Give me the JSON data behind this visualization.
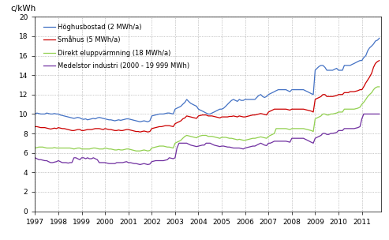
{
  "ylabel": "c/kWh",
  "xlim": [
    1997,
    2011.83
  ],
  "ylim": [
    0,
    20
  ],
  "yticks": [
    0,
    2,
    4,
    6,
    8,
    10,
    12,
    14,
    16,
    18,
    20
  ],
  "xticks": [
    1997,
    1998,
    1999,
    2000,
    2001,
    2002,
    2003,
    2004,
    2005,
    2006,
    2007,
    2008,
    2009,
    2010,
    2011
  ],
  "legend_labels": [
    "Höghusbostad (2 MWh/a)",
    "Småhus (5 MWh/a)",
    "Direkt eluppvärmning (18 MWh/a)",
    "Medelstor industri (2000 - 19 999 MWh)"
  ],
  "colors": [
    "#4472C4",
    "#CC0000",
    "#92D050",
    "#7030A0"
  ],
  "blue_x": [
    1997.0,
    1997.08,
    1997.17,
    1997.25,
    1997.33,
    1997.42,
    1997.5,
    1997.58,
    1997.67,
    1997.75,
    1997.83,
    1997.92,
    1998.0,
    1998.08,
    1998.17,
    1998.25,
    1998.33,
    1998.42,
    1998.5,
    1998.58,
    1998.67,
    1998.75,
    1998.83,
    1998.92,
    1999.0,
    1999.08,
    1999.17,
    1999.25,
    1999.33,
    1999.42,
    1999.5,
    1999.58,
    1999.67,
    1999.75,
    1999.83,
    1999.92,
    2000.0,
    2000.08,
    2000.17,
    2000.25,
    2000.33,
    2000.42,
    2000.5,
    2000.58,
    2000.67,
    2000.75,
    2000.83,
    2000.92,
    2001.0,
    2001.08,
    2001.17,
    2001.25,
    2001.33,
    2001.42,
    2001.5,
    2001.58,
    2001.67,
    2001.75,
    2001.83,
    2001.92,
    2002.0,
    2002.08,
    2002.17,
    2002.25,
    2002.33,
    2002.42,
    2002.5,
    2002.58,
    2002.67,
    2002.75,
    2002.83,
    2002.92,
    2003.0,
    2003.08,
    2003.17,
    2003.25,
    2003.33,
    2003.42,
    2003.5,
    2003.58,
    2003.67,
    2003.75,
    2003.83,
    2003.92,
    2004.0,
    2004.08,
    2004.17,
    2004.25,
    2004.33,
    2004.42,
    2004.5,
    2004.58,
    2004.67,
    2004.75,
    2004.83,
    2004.92,
    2005.0,
    2005.08,
    2005.17,
    2005.25,
    2005.33,
    2005.42,
    2005.5,
    2005.58,
    2005.67,
    2005.75,
    2005.83,
    2005.92,
    2006.0,
    2006.08,
    2006.17,
    2006.25,
    2006.33,
    2006.42,
    2006.5,
    2006.58,
    2006.67,
    2006.75,
    2006.83,
    2006.92,
    2007.0,
    2007.08,
    2007.17,
    2007.25,
    2007.33,
    2007.42,
    2007.5,
    2007.58,
    2007.67,
    2007.75,
    2007.83,
    2007.92,
    2008.0,
    2008.08,
    2008.17,
    2008.25,
    2008.33,
    2008.42,
    2008.5,
    2008.58,
    2008.67,
    2008.75,
    2008.83,
    2008.92,
    2009.0,
    2009.08,
    2009.17,
    2009.25,
    2009.33,
    2009.42,
    2009.5,
    2009.58,
    2009.67,
    2009.75,
    2009.83,
    2009.92,
    2010.0,
    2010.08,
    2010.17,
    2010.25,
    2010.33,
    2010.42,
    2010.5,
    2010.58,
    2010.67,
    2010.75,
    2010.83,
    2010.92,
    2011.0,
    2011.08,
    2011.17,
    2011.25,
    2011.33,
    2011.42,
    2011.5,
    2011.58,
    2011.67,
    2011.75
  ],
  "blue_y": [
    10.0,
    10.1,
    10.05,
    10.0,
    10.0,
    10.0,
    10.1,
    10.05,
    10.0,
    10.0,
    10.05,
    10.0,
    10.0,
    9.9,
    9.85,
    9.8,
    9.75,
    9.7,
    9.65,
    9.6,
    9.55,
    9.6,
    9.65,
    9.6,
    9.5,
    9.45,
    9.5,
    9.4,
    9.45,
    9.5,
    9.55,
    9.5,
    9.6,
    9.65,
    9.6,
    9.55,
    9.5,
    9.45,
    9.4,
    9.4,
    9.35,
    9.3,
    9.35,
    9.4,
    9.35,
    9.4,
    9.45,
    9.5,
    9.5,
    9.45,
    9.4,
    9.35,
    9.3,
    9.25,
    9.2,
    9.25,
    9.3,
    9.25,
    9.2,
    9.3,
    9.8,
    9.85,
    9.9,
    9.95,
    10.0,
    10.0,
    10.0,
    10.05,
    10.1,
    10.1,
    10.05,
    10.0,
    10.5,
    10.6,
    10.7,
    10.8,
    11.0,
    11.2,
    11.5,
    11.3,
    11.1,
    11.0,
    10.9,
    10.8,
    10.5,
    10.4,
    10.3,
    10.2,
    10.1,
    10.0,
    10.0,
    10.1,
    10.2,
    10.3,
    10.4,
    10.5,
    10.5,
    10.6,
    10.8,
    11.0,
    11.2,
    11.4,
    11.5,
    11.4,
    11.3,
    11.5,
    11.4,
    11.4,
    11.5,
    11.5,
    11.5,
    11.5,
    11.5,
    11.5,
    11.7,
    11.9,
    12.0,
    11.8,
    11.7,
    11.8,
    12.0,
    12.1,
    12.2,
    12.3,
    12.4,
    12.5,
    12.5,
    12.5,
    12.5,
    12.5,
    12.4,
    12.3,
    12.5,
    12.5,
    12.5,
    12.5,
    12.5,
    12.5,
    12.5,
    12.4,
    12.3,
    12.2,
    12.1,
    12.0,
    14.5,
    14.7,
    14.9,
    15.0,
    15.0,
    14.8,
    14.5,
    14.5,
    14.5,
    14.5,
    14.6,
    14.7,
    14.5,
    14.5,
    14.5,
    15.0,
    15.0,
    15.0,
    15.0,
    15.1,
    15.2,
    15.3,
    15.4,
    15.5,
    15.5,
    15.8,
    16.0,
    16.5,
    16.8,
    17.0,
    17.2,
    17.5,
    17.6,
    17.8
  ],
  "red_x": [
    1997.0,
    1997.08,
    1997.17,
    1997.25,
    1997.33,
    1997.42,
    1997.5,
    1997.58,
    1997.67,
    1997.75,
    1997.83,
    1997.92,
    1998.0,
    1998.08,
    1998.17,
    1998.25,
    1998.33,
    1998.42,
    1998.5,
    1998.58,
    1998.67,
    1998.75,
    1998.83,
    1998.92,
    1999.0,
    1999.08,
    1999.17,
    1999.25,
    1999.33,
    1999.42,
    1999.5,
    1999.58,
    1999.67,
    1999.75,
    1999.83,
    1999.92,
    2000.0,
    2000.08,
    2000.17,
    2000.25,
    2000.33,
    2000.42,
    2000.5,
    2000.58,
    2000.67,
    2000.75,
    2000.83,
    2000.92,
    2001.0,
    2001.08,
    2001.17,
    2001.25,
    2001.33,
    2001.42,
    2001.5,
    2001.58,
    2001.67,
    2001.75,
    2001.83,
    2001.92,
    2002.0,
    2002.08,
    2002.17,
    2002.25,
    2002.33,
    2002.42,
    2002.5,
    2002.58,
    2002.67,
    2002.75,
    2002.83,
    2002.92,
    2003.0,
    2003.08,
    2003.17,
    2003.25,
    2003.33,
    2003.42,
    2003.5,
    2003.58,
    2003.67,
    2003.75,
    2003.83,
    2003.92,
    2004.0,
    2004.08,
    2004.17,
    2004.25,
    2004.33,
    2004.42,
    2004.5,
    2004.58,
    2004.67,
    2004.75,
    2004.83,
    2004.92,
    2005.0,
    2005.08,
    2005.17,
    2005.25,
    2005.33,
    2005.42,
    2005.5,
    2005.58,
    2005.67,
    2005.75,
    2005.83,
    2005.92,
    2006.0,
    2006.08,
    2006.17,
    2006.25,
    2006.33,
    2006.42,
    2006.5,
    2006.58,
    2006.67,
    2006.75,
    2006.83,
    2006.92,
    2007.0,
    2007.08,
    2007.17,
    2007.25,
    2007.33,
    2007.42,
    2007.5,
    2007.58,
    2007.67,
    2007.75,
    2007.83,
    2007.92,
    2008.0,
    2008.08,
    2008.17,
    2008.25,
    2008.33,
    2008.42,
    2008.5,
    2008.58,
    2008.67,
    2008.75,
    2008.83,
    2008.92,
    2009.0,
    2009.08,
    2009.17,
    2009.25,
    2009.33,
    2009.42,
    2009.5,
    2009.58,
    2009.67,
    2009.75,
    2009.83,
    2009.92,
    2010.0,
    2010.08,
    2010.17,
    2010.25,
    2010.33,
    2010.42,
    2010.5,
    2010.58,
    2010.67,
    2010.75,
    2010.83,
    2010.92,
    2011.0,
    2011.08,
    2011.17,
    2011.25,
    2011.33,
    2011.42,
    2011.5,
    2011.58,
    2011.67,
    2011.75
  ],
  "red_y": [
    8.7,
    8.7,
    8.65,
    8.6,
    8.6,
    8.6,
    8.55,
    8.5,
    8.45,
    8.5,
    8.55,
    8.5,
    8.6,
    8.55,
    8.5,
    8.5,
    8.45,
    8.4,
    8.35,
    8.3,
    8.3,
    8.35,
    8.4,
    8.4,
    8.3,
    8.3,
    8.35,
    8.4,
    8.4,
    8.4,
    8.45,
    8.5,
    8.5,
    8.5,
    8.45,
    8.4,
    8.5,
    8.45,
    8.4,
    8.4,
    8.35,
    8.3,
    8.3,
    8.35,
    8.3,
    8.3,
    8.35,
    8.4,
    8.4,
    8.35,
    8.3,
    8.25,
    8.2,
    8.2,
    8.15,
    8.2,
    8.25,
    8.2,
    8.15,
    8.2,
    8.5,
    8.55,
    8.6,
    8.65,
    8.7,
    8.7,
    8.75,
    8.8,
    8.8,
    8.8,
    8.75,
    8.7,
    9.0,
    9.1,
    9.2,
    9.3,
    9.5,
    9.6,
    9.8,
    9.75,
    9.7,
    9.65,
    9.6,
    9.55,
    9.8,
    9.85,
    9.9,
    9.9,
    9.9,
    9.8,
    9.8,
    9.8,
    9.75,
    9.7,
    9.65,
    9.6,
    9.7,
    9.7,
    9.7,
    9.7,
    9.75,
    9.75,
    9.8,
    9.75,
    9.7,
    9.8,
    9.75,
    9.7,
    9.7,
    9.75,
    9.8,
    9.85,
    9.9,
    9.9,
    9.95,
    10.0,
    10.05,
    10.0,
    9.95,
    9.9,
    10.2,
    10.3,
    10.4,
    10.5,
    10.5,
    10.5,
    10.5,
    10.5,
    10.5,
    10.5,
    10.45,
    10.4,
    10.5,
    10.5,
    10.5,
    10.5,
    10.5,
    10.5,
    10.5,
    10.45,
    10.4,
    10.35,
    10.3,
    10.2,
    11.5,
    11.6,
    11.7,
    11.8,
    12.0,
    12.0,
    11.8,
    11.8,
    11.8,
    11.8,
    11.85,
    11.9,
    12.0,
    12.0,
    12.0,
    12.2,
    12.2,
    12.2,
    12.3,
    12.3,
    12.3,
    12.35,
    12.4,
    12.5,
    12.5,
    12.8,
    13.2,
    13.5,
    13.8,
    14.2,
    14.8,
    15.2,
    15.4,
    15.5
  ],
  "green_x": [
    1997.0,
    1997.08,
    1997.17,
    1997.25,
    1997.33,
    1997.42,
    1997.5,
    1997.58,
    1997.67,
    1997.75,
    1997.83,
    1997.92,
    1998.0,
    1998.08,
    1998.17,
    1998.25,
    1998.33,
    1998.42,
    1998.5,
    1998.58,
    1998.67,
    1998.75,
    1998.83,
    1998.92,
    1999.0,
    1999.08,
    1999.17,
    1999.25,
    1999.33,
    1999.42,
    1999.5,
    1999.58,
    1999.67,
    1999.75,
    1999.83,
    1999.92,
    2000.0,
    2000.08,
    2000.17,
    2000.25,
    2000.33,
    2000.42,
    2000.5,
    2000.58,
    2000.67,
    2000.75,
    2000.83,
    2000.92,
    2001.0,
    2001.08,
    2001.17,
    2001.25,
    2001.33,
    2001.42,
    2001.5,
    2001.58,
    2001.67,
    2001.75,
    2001.83,
    2001.92,
    2002.0,
    2002.08,
    2002.17,
    2002.25,
    2002.33,
    2002.42,
    2002.5,
    2002.58,
    2002.67,
    2002.75,
    2002.83,
    2002.92,
    2003.0,
    2003.08,
    2003.17,
    2003.25,
    2003.33,
    2003.42,
    2003.5,
    2003.58,
    2003.67,
    2003.75,
    2003.83,
    2003.92,
    2004.0,
    2004.08,
    2004.17,
    2004.25,
    2004.33,
    2004.42,
    2004.5,
    2004.58,
    2004.67,
    2004.75,
    2004.83,
    2004.92,
    2005.0,
    2005.08,
    2005.17,
    2005.25,
    2005.33,
    2005.42,
    2005.5,
    2005.58,
    2005.67,
    2005.75,
    2005.83,
    2005.92,
    2006.0,
    2006.08,
    2006.17,
    2006.25,
    2006.33,
    2006.42,
    2006.5,
    2006.58,
    2006.67,
    2006.75,
    2006.83,
    2006.92,
    2007.0,
    2007.08,
    2007.17,
    2007.25,
    2007.33,
    2007.42,
    2007.5,
    2007.58,
    2007.67,
    2007.75,
    2007.83,
    2007.92,
    2008.0,
    2008.08,
    2008.17,
    2008.25,
    2008.33,
    2008.42,
    2008.5,
    2008.58,
    2008.67,
    2008.75,
    2008.83,
    2008.92,
    2009.0,
    2009.08,
    2009.17,
    2009.25,
    2009.33,
    2009.42,
    2009.5,
    2009.58,
    2009.67,
    2009.75,
    2009.83,
    2009.92,
    2010.0,
    2010.08,
    2010.17,
    2010.25,
    2010.33,
    2010.42,
    2010.5,
    2010.58,
    2010.67,
    2010.75,
    2010.83,
    2010.92,
    2011.0,
    2011.08,
    2011.17,
    2011.25,
    2011.33,
    2011.42,
    2011.5,
    2011.58,
    2011.67,
    2011.75
  ],
  "green_y": [
    6.5,
    6.55,
    6.6,
    6.6,
    6.6,
    6.55,
    6.5,
    6.5,
    6.5,
    6.5,
    6.55,
    6.5,
    6.5,
    6.5,
    6.5,
    6.5,
    6.5,
    6.5,
    6.5,
    6.45,
    6.4,
    6.45,
    6.5,
    6.5,
    6.4,
    6.4,
    6.4,
    6.4,
    6.4,
    6.45,
    6.5,
    6.5,
    6.45,
    6.4,
    6.4,
    6.4,
    6.5,
    6.45,
    6.4,
    6.4,
    6.35,
    6.3,
    6.3,
    6.35,
    6.3,
    6.3,
    6.35,
    6.4,
    6.4,
    6.35,
    6.3,
    6.25,
    6.2,
    6.2,
    6.2,
    6.25,
    6.3,
    6.25,
    6.2,
    6.25,
    6.5,
    6.55,
    6.6,
    6.65,
    6.7,
    6.7,
    6.7,
    6.65,
    6.6,
    6.6,
    6.55,
    6.5,
    7.0,
    7.1,
    7.2,
    7.3,
    7.5,
    7.7,
    7.8,
    7.75,
    7.7,
    7.65,
    7.6,
    7.55,
    7.7,
    7.75,
    7.8,
    7.8,
    7.8,
    7.7,
    7.7,
    7.7,
    7.65,
    7.6,
    7.55,
    7.5,
    7.6,
    7.6,
    7.6,
    7.55,
    7.5,
    7.5,
    7.45,
    7.4,
    7.35,
    7.4,
    7.35,
    7.3,
    7.3,
    7.35,
    7.4,
    7.45,
    7.5,
    7.5,
    7.55,
    7.6,
    7.65,
    7.6,
    7.55,
    7.5,
    7.7,
    7.8,
    7.9,
    8.0,
    8.5,
    8.5,
    8.5,
    8.5,
    8.5,
    8.5,
    8.45,
    8.4,
    8.5,
    8.5,
    8.5,
    8.5,
    8.5,
    8.5,
    8.5,
    8.45,
    8.4,
    8.35,
    8.3,
    8.2,
    9.5,
    9.6,
    9.7,
    9.8,
    10.0,
    10.0,
    9.9,
    9.9,
    10.0,
    10.0,
    10.05,
    10.1,
    10.2,
    10.2,
    10.2,
    10.5,
    10.5,
    10.5,
    10.5,
    10.5,
    10.5,
    10.55,
    10.6,
    10.7,
    11.0,
    11.2,
    11.5,
    11.8,
    12.0,
    12.2,
    12.5,
    12.7,
    12.8,
    12.8
  ],
  "purple_x": [
    1997.0,
    1997.08,
    1997.17,
    1997.25,
    1997.33,
    1997.42,
    1997.5,
    1997.58,
    1997.67,
    1997.75,
    1997.83,
    1997.92,
    1998.0,
    1998.08,
    1998.17,
    1998.25,
    1998.33,
    1998.42,
    1998.5,
    1998.58,
    1998.67,
    1998.75,
    1998.83,
    1998.92,
    1999.0,
    1999.08,
    1999.17,
    1999.25,
    1999.33,
    1999.42,
    1999.5,
    1999.58,
    1999.67,
    1999.75,
    1999.83,
    1999.92,
    2000.0,
    2000.08,
    2000.17,
    2000.25,
    2000.33,
    2000.42,
    2000.5,
    2000.58,
    2000.67,
    2000.75,
    2000.83,
    2000.92,
    2001.0,
    2001.08,
    2001.17,
    2001.25,
    2001.33,
    2001.42,
    2001.5,
    2001.58,
    2001.67,
    2001.75,
    2001.83,
    2001.92,
    2002.0,
    2002.08,
    2002.17,
    2002.25,
    2002.33,
    2002.42,
    2002.5,
    2002.58,
    2002.67,
    2002.75,
    2002.83,
    2002.92,
    2003.0,
    2003.08,
    2003.17,
    2003.25,
    2003.33,
    2003.42,
    2003.5,
    2003.58,
    2003.67,
    2003.75,
    2003.83,
    2003.92,
    2004.0,
    2004.08,
    2004.17,
    2004.25,
    2004.33,
    2004.42,
    2004.5,
    2004.58,
    2004.67,
    2004.75,
    2004.83,
    2004.92,
    2005.0,
    2005.08,
    2005.17,
    2005.25,
    2005.33,
    2005.42,
    2005.5,
    2005.58,
    2005.67,
    2005.75,
    2005.83,
    2005.92,
    2006.0,
    2006.08,
    2006.17,
    2006.25,
    2006.33,
    2006.42,
    2006.5,
    2006.58,
    2006.67,
    2006.75,
    2006.83,
    2006.92,
    2007.0,
    2007.08,
    2007.17,
    2007.25,
    2007.33,
    2007.42,
    2007.5,
    2007.58,
    2007.67,
    2007.75,
    2007.83,
    2007.92,
    2008.0,
    2008.08,
    2008.17,
    2008.25,
    2008.33,
    2008.42,
    2008.5,
    2008.58,
    2008.67,
    2008.75,
    2008.83,
    2008.92,
    2009.0,
    2009.08,
    2009.17,
    2009.25,
    2009.33,
    2009.42,
    2009.5,
    2009.58,
    2009.67,
    2009.75,
    2009.83,
    2009.92,
    2010.0,
    2010.08,
    2010.17,
    2010.25,
    2010.33,
    2010.42,
    2010.5,
    2010.58,
    2010.67,
    2010.75,
    2010.83,
    2010.92,
    2011.0,
    2011.08,
    2011.17,
    2011.25,
    2011.33,
    2011.42,
    2011.5,
    2011.58,
    2011.67,
    2011.75
  ],
  "purple_y": [
    5.5,
    5.4,
    5.3,
    5.3,
    5.25,
    5.2,
    5.2,
    5.1,
    5.0,
    5.0,
    5.05,
    5.1,
    5.2,
    5.1,
    5.0,
    5.0,
    5.0,
    4.95,
    5.0,
    5.0,
    5.5,
    5.5,
    5.4,
    5.3,
    5.5,
    5.5,
    5.4,
    5.5,
    5.4,
    5.4,
    5.5,
    5.4,
    5.3,
    5.0,
    5.0,
    5.0,
    5.0,
    4.95,
    4.9,
    4.9,
    4.9,
    4.9,
    5.0,
    5.0,
    5.0,
    5.0,
    5.05,
    5.1,
    5.0,
    5.0,
    4.95,
    4.9,
    4.9,
    4.85,
    4.8,
    4.85,
    4.9,
    4.85,
    4.8,
    4.85,
    5.1,
    5.15,
    5.2,
    5.2,
    5.2,
    5.2,
    5.2,
    5.25,
    5.3,
    5.5,
    5.45,
    5.4,
    5.5,
    6.5,
    7.0,
    7.0,
    7.0,
    7.0,
    7.0,
    6.9,
    6.8,
    6.75,
    6.7,
    6.65,
    6.7,
    6.75,
    6.8,
    6.8,
    7.0,
    7.0,
    7.0,
    6.9,
    6.8,
    6.75,
    6.7,
    6.65,
    6.7,
    6.7,
    6.65,
    6.6,
    6.6,
    6.55,
    6.5,
    6.5,
    6.5,
    6.5,
    6.45,
    6.4,
    6.5,
    6.55,
    6.6,
    6.65,
    6.7,
    6.7,
    6.8,
    6.9,
    7.0,
    6.9,
    6.8,
    6.75,
    7.0,
    7.0,
    7.1,
    7.2,
    7.2,
    7.2,
    7.2,
    7.2,
    7.2,
    7.2,
    7.15,
    7.1,
    7.5,
    7.5,
    7.5,
    7.5,
    7.5,
    7.5,
    7.5,
    7.4,
    7.3,
    7.2,
    7.1,
    7.0,
    7.5,
    7.6,
    7.7,
    7.8,
    8.0,
    8.0,
    7.9,
    7.9,
    8.0,
    8.0,
    8.05,
    8.1,
    8.3,
    8.3,
    8.3,
    8.5,
    8.5,
    8.5,
    8.5,
    8.5,
    8.5,
    8.55,
    8.6,
    8.7,
    9.5,
    10.0,
    10.0,
    10.0,
    10.0,
    10.0,
    10.0,
    10.0,
    10.0,
    10.0
  ]
}
